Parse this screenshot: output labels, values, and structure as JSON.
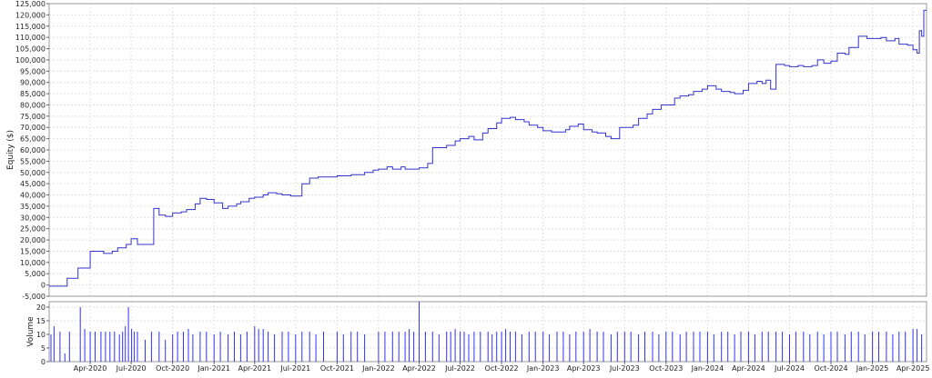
{
  "chart_data": [
    {
      "type": "line",
      "title": "",
      "xlabel": "",
      "ylabel": "Equity ($)",
      "ylim": [
        -5000,
        125000
      ],
      "grid": true,
      "legend": "none",
      "x_ticks": [
        "Apr-2020",
        "Jul-2020",
        "Oct-2020",
        "Jan-2021",
        "Apr-2021",
        "Jul-2021",
        "Oct-2021",
        "Jan-2022",
        "Apr-2022",
        "Jul-2022",
        "Oct-2022",
        "Jan-2023",
        "Apr-2023",
        "Jul-2023",
        "Oct-2023",
        "Jan-2024",
        "Apr-2024",
        "Jul-2024",
        "Oct-2024",
        "Jan-2025",
        "Apr-2025"
      ],
      "y_ticks": [
        -5000,
        0,
        5000,
        10000,
        15000,
        20000,
        25000,
        30000,
        35000,
        40000,
        45000,
        50000,
        55000,
        60000,
        65000,
        70000,
        75000,
        80000,
        85000,
        90000,
        95000,
        100000,
        105000,
        110000,
        115000,
        120000,
        125000
      ],
      "y_tick_labels": [
        "-5,000",
        "0",
        "5,000",
        "10,000",
        "15,000",
        "20,000",
        "25,000",
        "30,000",
        "35,000",
        "40,000",
        "45,000",
        "50,000",
        "55,000",
        "60,000",
        "65,000",
        "70,000",
        "75,000",
        "80,000",
        "85,000",
        "90,000",
        "95,000",
        "100,000",
        "105,000",
        "110,000",
        "115,000",
        "120,000",
        "125,000"
      ],
      "x_range": [
        "2020-01-01",
        "2025-05-01"
      ],
      "series": [
        {
          "color": "#3333cc",
          "x": [
            "2020-01-01",
            "2020-01-15",
            "2020-02-01",
            "2020-02-10",
            "2020-02-25",
            "2020-03-05",
            "2020-03-20",
            "2020-04-01",
            "2020-04-15",
            "2020-05-01",
            "2020-05-20",
            "2020-06-01",
            "2020-06-20",
            "2020-07-01",
            "2020-07-15",
            "2020-08-01",
            "2020-08-20",
            "2020-09-01",
            "2020-09-15",
            "2020-10-01",
            "2020-10-20",
            "2020-11-01",
            "2020-11-20",
            "2020-12-01",
            "2020-12-15",
            "2021-01-01",
            "2021-01-20",
            "2021-02-01",
            "2021-02-20",
            "2021-03-01",
            "2021-03-20",
            "2021-04-01",
            "2021-04-20",
            "2021-05-01",
            "2021-05-20",
            "2021-06-01",
            "2021-06-20",
            "2021-07-01",
            "2021-07-15",
            "2021-08-01",
            "2021-08-20",
            "2021-09-01",
            "2021-10-01",
            "2021-11-01",
            "2021-12-01",
            "2021-12-20",
            "2022-01-01",
            "2022-01-20",
            "2022-02-01",
            "2022-02-20",
            "2022-03-01",
            "2022-03-20",
            "2022-04-01",
            "2022-04-20",
            "2022-05-01",
            "2022-05-20",
            "2022-06-01",
            "2022-06-20",
            "2022-07-01",
            "2022-07-20",
            "2022-08-01",
            "2022-08-20",
            "2022-09-01",
            "2022-09-20",
            "2022-10-01",
            "2022-10-20",
            "2022-11-01",
            "2022-11-20",
            "2022-12-01",
            "2022-12-20",
            "2023-01-01",
            "2023-01-20",
            "2023-02-01",
            "2023-02-20",
            "2023-03-01",
            "2023-03-20",
            "2023-04-01",
            "2023-04-20",
            "2023-05-01",
            "2023-05-20",
            "2023-06-01",
            "2023-06-20",
            "2023-07-01",
            "2023-07-20",
            "2023-08-01",
            "2023-08-20",
            "2023-09-01",
            "2023-09-20",
            "2023-10-01",
            "2023-10-20",
            "2023-11-01",
            "2023-11-20",
            "2023-12-01",
            "2023-12-20",
            "2024-01-01",
            "2024-01-20",
            "2024-02-01",
            "2024-02-20",
            "2024-03-01",
            "2024-03-20",
            "2024-04-01",
            "2024-04-20",
            "2024-05-01",
            "2024-05-10",
            "2024-05-20",
            "2024-06-01",
            "2024-06-20",
            "2024-07-01",
            "2024-07-20",
            "2024-08-01",
            "2024-08-20",
            "2024-09-01",
            "2024-09-15",
            "2024-10-01",
            "2024-10-15",
            "2024-11-01",
            "2024-11-10",
            "2024-11-20",
            "2024-12-01",
            "2024-12-20",
            "2025-01-01",
            "2025-01-20",
            "2025-02-01",
            "2025-02-20",
            "2025-03-01",
            "2025-03-20",
            "2025-04-01",
            "2025-04-10",
            "2025-04-15",
            "2025-04-20",
            "2025-04-25",
            "2025-05-01"
          ],
          "y": [
            -500,
            -500,
            -500,
            3000,
            3000,
            7500,
            7500,
            15000,
            15000,
            14000,
            15000,
            16500,
            18000,
            20500,
            18000,
            18000,
            34000,
            31000,
            30500,
            32000,
            32500,
            33500,
            36000,
            38500,
            38000,
            36500,
            34000,
            35000,
            36000,
            37000,
            38500,
            39000,
            40000,
            41000,
            40500,
            40000,
            39500,
            39500,
            45000,
            47500,
            48000,
            48000,
            48500,
            49000,
            50000,
            51000,
            51500,
            52500,
            51500,
            52500,
            51500,
            51500,
            52000,
            54000,
            61000,
            61000,
            62000,
            64000,
            65000,
            66000,
            64500,
            67500,
            69500,
            72000,
            74000,
            74500,
            73500,
            72500,
            71000,
            70000,
            68500,
            68000,
            68000,
            69000,
            70500,
            71500,
            69000,
            68000,
            67500,
            66000,
            65000,
            70000,
            70000,
            71000,
            74000,
            76000,
            78000,
            80000,
            80000,
            83000,
            84000,
            84500,
            86000,
            87000,
            88500,
            87000,
            86000,
            85500,
            85000,
            86500,
            89500,
            90500,
            89500,
            91000,
            87000,
            98000,
            97500,
            97000,
            97500,
            97000,
            97500,
            100000,
            98500,
            99500,
            103000,
            102500,
            105500,
            105500,
            110500,
            109500,
            109500,
            110000,
            108500,
            109500,
            107000,
            106500,
            104500,
            103000,
            113000,
            110500,
            122000,
            122000
          ]
        }
      ]
    },
    {
      "type": "bar",
      "title": "",
      "xlabel": "",
      "ylabel": "Volume",
      "ylim": [
        0,
        22
      ],
      "grid": true,
      "legend": "none",
      "y_ticks": [
        0,
        5,
        10,
        15,
        20
      ],
      "y_tick_labels": [
        "0",
        "5",
        "10",
        "15",
        "20"
      ],
      "x_range": [
        "2020-01-01",
        "2025-05-01"
      ],
      "x_ticks": [
        "Apr-2020",
        "Jul-2020",
        "Oct-2020",
        "Jan-2021",
        "Apr-2021",
        "Jul-2021",
        "Oct-2021",
        "Jan-2022",
        "Apr-2022",
        "Jul-2022",
        "Oct-2022",
        "Jan-2023",
        "Apr-2023",
        "Jul-2023",
        "Oct-2023",
        "Jan-2024",
        "Apr-2024",
        "Jul-2024",
        "Oct-2024",
        "Jan-2025",
        "Apr-2025"
      ],
      "series": [
        {
          "color": "#3333ff",
          "x": [
            "2020-01-05",
            "2020-01-12",
            "2020-01-25",
            "2020-02-05",
            "2020-02-15",
            "2020-03-10",
            "2020-03-20",
            "2020-04-01",
            "2020-04-12",
            "2020-04-25",
            "2020-05-05",
            "2020-05-15",
            "2020-05-25",
            "2020-06-05",
            "2020-06-12",
            "2020-06-18",
            "2020-06-25",
            "2020-07-02",
            "2020-07-08",
            "2020-07-15",
            "2020-08-01",
            "2020-08-15",
            "2020-09-01",
            "2020-09-15",
            "2020-10-01",
            "2020-10-12",
            "2020-10-25",
            "2020-11-05",
            "2020-11-15",
            "2020-12-01",
            "2020-12-15",
            "2021-01-01",
            "2021-01-15",
            "2021-02-01",
            "2021-02-15",
            "2021-03-01",
            "2021-03-15",
            "2021-04-01",
            "2021-04-10",
            "2021-04-20",
            "2021-05-01",
            "2021-05-15",
            "2021-06-01",
            "2021-06-15",
            "2021-07-01",
            "2021-07-15",
            "2021-08-01",
            "2021-08-15",
            "2021-09-01",
            "2021-10-01",
            "2021-10-15",
            "2021-11-01",
            "2021-11-15",
            "2021-12-01",
            "2022-01-01",
            "2022-01-15",
            "2022-02-01",
            "2022-02-15",
            "2022-03-01",
            "2022-03-10",
            "2022-03-20",
            "2022-04-01",
            "2022-04-15",
            "2022-05-01",
            "2022-05-15",
            "2022-06-01",
            "2022-06-10",
            "2022-06-20",
            "2022-07-01",
            "2022-07-10",
            "2022-07-20",
            "2022-08-01",
            "2022-08-15",
            "2022-09-01",
            "2022-09-10",
            "2022-09-20",
            "2022-10-01",
            "2022-10-10",
            "2022-10-20",
            "2022-11-01",
            "2022-11-15",
            "2022-12-01",
            "2022-12-15",
            "2023-01-01",
            "2023-01-15",
            "2023-02-01",
            "2023-02-15",
            "2023-03-01",
            "2023-03-15",
            "2023-04-01",
            "2023-04-15",
            "2023-05-01",
            "2023-05-15",
            "2023-06-01",
            "2023-06-15",
            "2023-07-01",
            "2023-07-15",
            "2023-08-01",
            "2023-08-15",
            "2023-09-01",
            "2023-09-15",
            "2023-10-01",
            "2023-10-15",
            "2023-11-01",
            "2023-11-15",
            "2023-12-01",
            "2023-12-15",
            "2024-01-01",
            "2024-01-15",
            "2024-02-01",
            "2024-02-15",
            "2024-03-01",
            "2024-03-15",
            "2024-04-01",
            "2024-04-15",
            "2024-05-01",
            "2024-05-15",
            "2024-06-01",
            "2024-06-15",
            "2024-07-01",
            "2024-07-15",
            "2024-08-01",
            "2024-08-15",
            "2024-09-01",
            "2024-09-15",
            "2024-10-01",
            "2024-10-15",
            "2024-11-01",
            "2024-11-15",
            "2024-12-01",
            "2024-12-15",
            "2025-01-01",
            "2025-01-15",
            "2025-02-01",
            "2025-02-15",
            "2025-03-01",
            "2025-03-15",
            "2025-04-01",
            "2025-04-10",
            "2025-04-20"
          ],
          "values": [
            10,
            13,
            11,
            3,
            11,
            20,
            12,
            11,
            11,
            11,
            11,
            11,
            11,
            10,
            11,
            13,
            20,
            12,
            11,
            11,
            8,
            11,
            11,
            8,
            10,
            11,
            11,
            12,
            10,
            11,
            11,
            10,
            11,
            10,
            11,
            10,
            11,
            13,
            12,
            12,
            11,
            10,
            11,
            11,
            10,
            11,
            11,
            10,
            11,
            11,
            10,
            11,
            11,
            10,
            11,
            11,
            11,
            11,
            11,
            12,
            11,
            22,
            11,
            11,
            10,
            11,
            11,
            12,
            11,
            11,
            10,
            11,
            11,
            11,
            10,
            11,
            11,
            12,
            11,
            11,
            10,
            11,
            11,
            11,
            10,
            11,
            11,
            10,
            11,
            11,
            12,
            11,
            11,
            10,
            11,
            11,
            11,
            10,
            11,
            11,
            10,
            11,
            11,
            10,
            11,
            11,
            11,
            11,
            10,
            11,
            11,
            10,
            11,
            11,
            10,
            11,
            11,
            11,
            11,
            10,
            11,
            11,
            10,
            11,
            10,
            11,
            11,
            10,
            11,
            11,
            10,
            11,
            11,
            11,
            10,
            11,
            11,
            12,
            12,
            10
          ]
        }
      ]
    }
  ]
}
